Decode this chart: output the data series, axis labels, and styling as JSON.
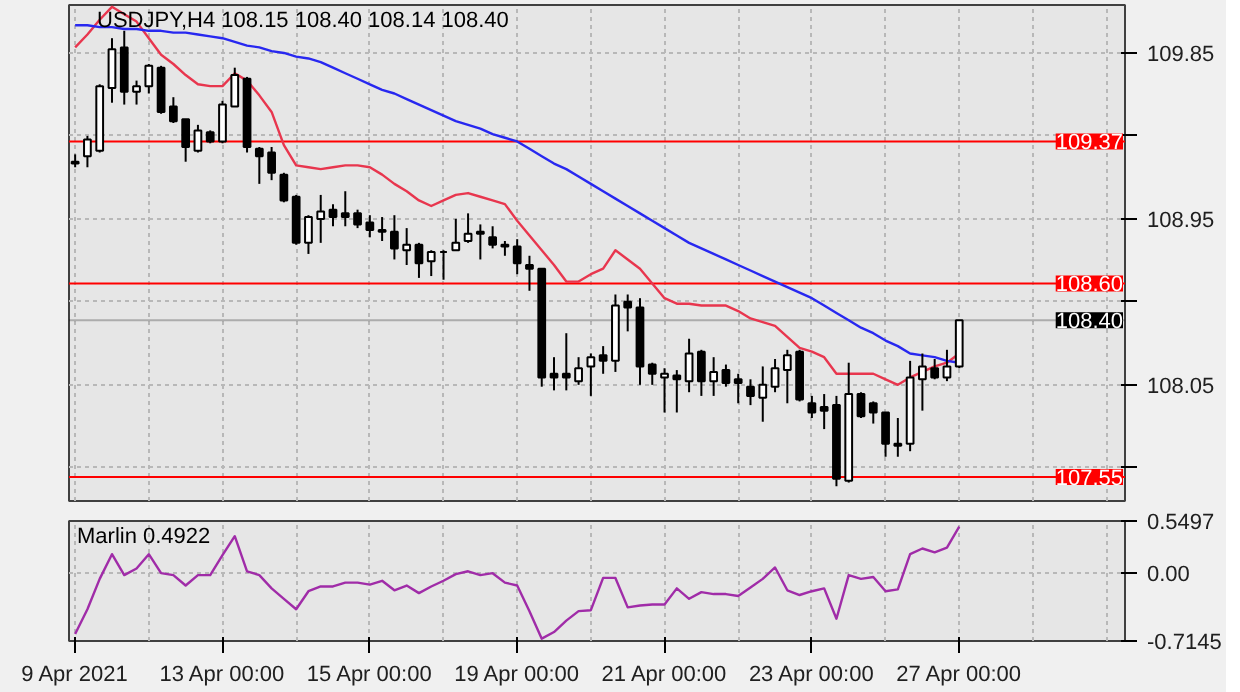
{
  "chart_data": [
    {
      "type": "candlestick",
      "title": "USDJPY,H4 108.15 108.40 108.14 108.40",
      "categories": [
        null,
        null,
        null,
        null,
        null,
        null,
        null,
        null,
        null,
        null,
        null,
        null,
        null,
        null,
        null,
        null,
        null,
        null,
        null,
        null,
        null,
        null,
        null,
        null,
        null,
        null,
        null,
        null,
        null,
        null,
        null,
        null,
        null,
        null,
        null,
        null,
        null,
        null,
        null,
        null,
        null,
        null,
        null,
        null,
        null,
        null,
        null,
        null,
        null,
        null,
        null,
        null,
        null,
        null,
        null,
        null,
        null,
        null,
        null,
        null,
        null,
        null,
        null,
        null,
        null,
        null,
        null,
        null,
        null,
        null,
        null,
        null,
        null
      ],
      "ohlc": [
        [
          109.26,
          109.3,
          109.23,
          109.25
        ],
        [
          109.29,
          109.4,
          109.23,
          109.38
        ],
        [
          109.32,
          109.68,
          109.31,
          109.67
        ],
        [
          109.66,
          109.93,
          109.58,
          109.87
        ],
        [
          109.88,
          109.97,
          109.57,
          109.64
        ],
        [
          109.64,
          109.7,
          109.57,
          109.67
        ],
        [
          109.67,
          109.79,
          109.63,
          109.78
        ],
        [
          109.77,
          109.78,
          109.52,
          109.53
        ],
        [
          109.56,
          109.61,
          109.47,
          109.48
        ],
        [
          109.49,
          109.49,
          109.26,
          109.34
        ],
        [
          109.32,
          109.46,
          109.31,
          109.43
        ],
        [
          109.42,
          109.43,
          109.36,
          109.37
        ],
        [
          109.37,
          109.59,
          109.36,
          109.57
        ],
        [
          109.56,
          109.77,
          109.56,
          109.73
        ],
        [
          109.71,
          109.72,
          109.31,
          109.34
        ],
        [
          109.33,
          109.34,
          109.14,
          109.29
        ],
        [
          109.31,
          109.34,
          109.16,
          109.2
        ],
        [
          109.19,
          109.2,
          109.04,
          109.05
        ],
        [
          109.07,
          109.08,
          108.81,
          108.82
        ],
        [
          108.82,
          108.97,
          108.76,
          108.96
        ],
        [
          108.95,
          109.08,
          108.82,
          108.99
        ],
        [
          109.0,
          109.03,
          108.91,
          108.96
        ],
        [
          108.98,
          109.1,
          108.91,
          108.96
        ],
        [
          108.98,
          109.0,
          108.9,
          108.92
        ],
        [
          108.93,
          108.97,
          108.85,
          108.89
        ],
        [
          108.89,
          108.96,
          108.83,
          108.88
        ],
        [
          108.88,
          108.97,
          108.73,
          108.79
        ],
        [
          108.78,
          108.9,
          108.7,
          108.81
        ],
        [
          108.81,
          108.82,
          108.63,
          108.71
        ],
        [
          108.72,
          108.78,
          108.64,
          108.77
        ],
        [
          108.77,
          108.78,
          108.62,
          108.77
        ],
        [
          108.78,
          108.95,
          108.78,
          108.82
        ],
        [
          108.83,
          108.98,
          108.82,
          108.87
        ],
        [
          108.88,
          108.92,
          108.73,
          108.87
        ],
        [
          108.85,
          108.91,
          108.79,
          108.81
        ],
        [
          108.81,
          108.83,
          108.75,
          108.8
        ],
        [
          108.8,
          108.84,
          108.65,
          108.71
        ],
        [
          108.7,
          108.75,
          108.56,
          108.68
        ],
        [
          108.68,
          108.68,
          108.04,
          108.09
        ],
        [
          108.11,
          108.2,
          108.02,
          108.09
        ],
        [
          108.11,
          108.33,
          108.02,
          108.09
        ],
        [
          108.07,
          108.2,
          108.05,
          108.14
        ],
        [
          108.15,
          108.22,
          107.99,
          108.2
        ],
        [
          108.21,
          108.26,
          108.11,
          108.18
        ],
        [
          108.18,
          108.54,
          108.12,
          108.48
        ],
        [
          108.5,
          108.54,
          108.34,
          108.47
        ],
        [
          108.47,
          108.52,
          108.05,
          108.15
        ],
        [
          108.16,
          108.17,
          108.05,
          108.11
        ],
        [
          108.09,
          108.14,
          107.9,
          108.11
        ],
        [
          108.1,
          108.13,
          107.9,
          108.08
        ],
        [
          108.07,
          108.3,
          108.01,
          108.22
        ],
        [
          108.23,
          108.24,
          107.99,
          108.07
        ],
        [
          108.07,
          108.2,
          107.99,
          108.12
        ],
        [
          108.13,
          108.16,
          108.04,
          108.06
        ],
        [
          108.08,
          108.11,
          107.95,
          108.06
        ],
        [
          108.04,
          108.08,
          107.94,
          107.99
        ],
        [
          107.98,
          108.15,
          107.85,
          108.05
        ],
        [
          108.04,
          108.19,
          108.01,
          108.14
        ],
        [
          108.13,
          108.24,
          107.95,
          108.21
        ],
        [
          108.23,
          108.24,
          107.96,
          107.97
        ],
        [
          107.95,
          107.99,
          107.87,
          107.9
        ],
        [
          107.93,
          108.0,
          107.81,
          107.91
        ],
        [
          107.94,
          107.99,
          107.5,
          107.54
        ],
        [
          107.53,
          108.17,
          107.52,
          108.0
        ],
        [
          108.0,
          108.01,
          107.87,
          107.88
        ],
        [
          107.95,
          107.96,
          107.84,
          107.9
        ],
        [
          107.9,
          107.9,
          107.66,
          107.73
        ],
        [
          107.72,
          107.87,
          107.66,
          107.73
        ],
        [
          107.73,
          108.18,
          107.69,
          108.09
        ],
        [
          108.08,
          108.22,
          107.91,
          108.15
        ],
        [
          108.14,
          108.19,
          108.08,
          108.09
        ],
        [
          108.09,
          108.24,
          108.07,
          108.15
        ],
        [
          108.15,
          108.4,
          108.14,
          108.4
        ]
      ],
      "series": [
        {
          "type": "line",
          "color": "#e8364e",
          "values": [
            109.88,
            109.95,
            110.03,
            110.1,
            110.06,
            110.02,
            109.93,
            109.84,
            109.79,
            109.73,
            109.68,
            109.67,
            109.67,
            109.74,
            109.7,
            109.62,
            109.53,
            109.35,
            109.24,
            109.23,
            109.22,
            109.23,
            109.24,
            109.24,
            109.23,
            109.19,
            109.14,
            109.1,
            109.05,
            109.02,
            109.05,
            109.08,
            109.09,
            109.07,
            109.05,
            109.03,
            108.94,
            108.86,
            108.78,
            108.7,
            108.61,
            108.61,
            108.65,
            108.68,
            108.78,
            108.73,
            108.68,
            108.6,
            108.52,
            108.49,
            108.49,
            108.48,
            108.48,
            108.48,
            108.45,
            108.41,
            108.39,
            108.37,
            108.31,
            108.25,
            108.23,
            108.2,
            108.11,
            108.11,
            108.11,
            108.11,
            108.08,
            108.05,
            108.09,
            108.12,
            108.15,
            108.17,
            108.22
          ]
        },
        {
          "type": "line",
          "color": "#2828f0",
          "values": [
            110.0,
            110.0,
            109.99,
            109.99,
            109.98,
            109.98,
            109.97,
            109.97,
            109.96,
            109.96,
            109.95,
            109.94,
            109.93,
            109.91,
            109.89,
            109.88,
            109.86,
            109.85,
            109.83,
            109.82,
            109.8,
            109.77,
            109.74,
            109.71,
            109.68,
            109.65,
            109.63,
            109.6,
            109.57,
            109.54,
            109.51,
            109.48,
            109.46,
            109.44,
            109.41,
            109.39,
            109.37,
            109.33,
            109.29,
            109.25,
            109.22,
            109.18,
            109.14,
            109.1,
            109.06,
            109.02,
            108.98,
            108.94,
            108.9,
            108.86,
            108.82,
            108.79,
            108.76,
            108.73,
            108.7,
            108.67,
            108.64,
            108.61,
            108.58,
            108.55,
            108.52,
            108.48,
            108.44,
            108.4,
            108.36,
            108.33,
            108.29,
            108.26,
            108.22,
            108.21,
            108.2,
            108.18,
            108.17
          ]
        }
      ],
      "ylim": [
        107.42,
        110.11
      ],
      "yticks": [
        109.85,
        {
          "value": 109.4,
          "label": null
        },
        108.95,
        {
          "value": 108.5,
          "label": null
        },
        108.05,
        {
          "value": 107.6,
          "label": null
        }
      ],
      "ref_lines": [
        {
          "axis": "y",
          "value": 109.37,
          "label": "109.37",
          "color": "#ff0000"
        },
        {
          "axis": "y",
          "value": 108.6,
          "label": "108.60",
          "color": "#ff0000"
        },
        {
          "axis": "y",
          "value": 107.55,
          "label": "107.55",
          "color": "#ff0000"
        },
        {
          "axis": "y",
          "value": 108.4,
          "label": "108.40",
          "color": "#000000"
        }
      ],
      "grid": true,
      "tick_labels": "y"
    },
    {
      "type": "line",
      "title": "Marlin 0.4922",
      "categories": [
        "9 Apr 2021",
        null,
        null,
        null,
        null,
        null,
        null,
        null,
        null,
        null,
        null,
        null,
        "13 Apr 00:00",
        null,
        null,
        null,
        null,
        null,
        null,
        null,
        null,
        null,
        null,
        null,
        "15 Apr 00:00",
        null,
        null,
        null,
        null,
        null,
        null,
        null,
        null,
        null,
        null,
        null,
        "19 Apr 00:00",
        null,
        null,
        null,
        null,
        null,
        null,
        null,
        null,
        null,
        null,
        null,
        "21 Apr 00:00",
        null,
        null,
        null,
        null,
        null,
        null,
        null,
        null,
        null,
        null,
        null,
        "23 Apr 00:00",
        null,
        null,
        null,
        null,
        null,
        null,
        null,
        null,
        null,
        null,
        null,
        "27 Apr 00:00"
      ],
      "series": [
        {
          "color": "#a02ca8",
          "values": [
            -0.64,
            -0.38,
            -0.06,
            0.2,
            -0.02,
            0.05,
            0.2,
            0.0,
            -0.02,
            -0.13,
            -0.02,
            -0.02,
            0.19,
            0.39,
            0.02,
            -0.02,
            -0.16,
            -0.27,
            -0.38,
            -0.19,
            -0.14,
            -0.14,
            -0.1,
            -0.1,
            -0.12,
            -0.08,
            -0.18,
            -0.13,
            -0.21,
            -0.14,
            -0.08,
            -0.01,
            0.02,
            -0.02,
            0.0,
            -0.1,
            -0.13,
            -0.4,
            -0.69,
            -0.62,
            -0.5,
            -0.4,
            -0.39,
            -0.05,
            -0.05,
            -0.36,
            -0.34,
            -0.33,
            -0.33,
            -0.16,
            -0.27,
            -0.2,
            -0.22,
            -0.22,
            -0.24,
            -0.15,
            -0.06,
            0.06,
            -0.18,
            -0.23,
            -0.19,
            -0.16,
            -0.48,
            -0.02,
            -0.06,
            -0.04,
            -0.19,
            -0.17,
            0.2,
            0.26,
            0.22,
            0.27,
            0.49
          ]
        }
      ],
      "ylim": [
        -0.7145,
        0.5497
      ],
      "yticks": [
        0.5497,
        {
          "value": 0,
          "label": "0.00"
        },
        -0.7145
      ],
      "grid": true
    }
  ]
}
